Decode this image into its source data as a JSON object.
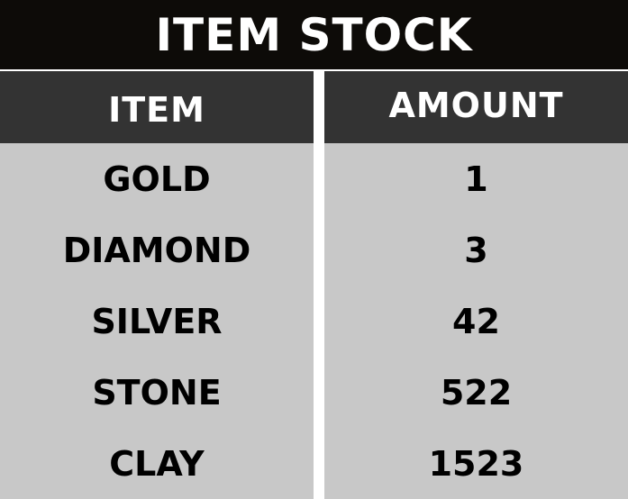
{
  "title": "ITEM STOCK",
  "columns": {
    "item_header": "ITEM",
    "amount_header": "AMOUNT"
  },
  "rows": [
    {
      "item": "GOLD",
      "amount": "1"
    },
    {
      "item": "DIAMOND",
      "amount": "3"
    },
    {
      "item": "SILVER",
      "amount": "42"
    },
    {
      "item": "STONE",
      "amount": "522"
    },
    {
      "item": "CLAY",
      "amount": "1523"
    }
  ],
  "colors": {
    "title_background": "#0d0b08",
    "header_background": "#333333",
    "cell_background": "#c8c8c8",
    "divider": "#ffffff"
  }
}
